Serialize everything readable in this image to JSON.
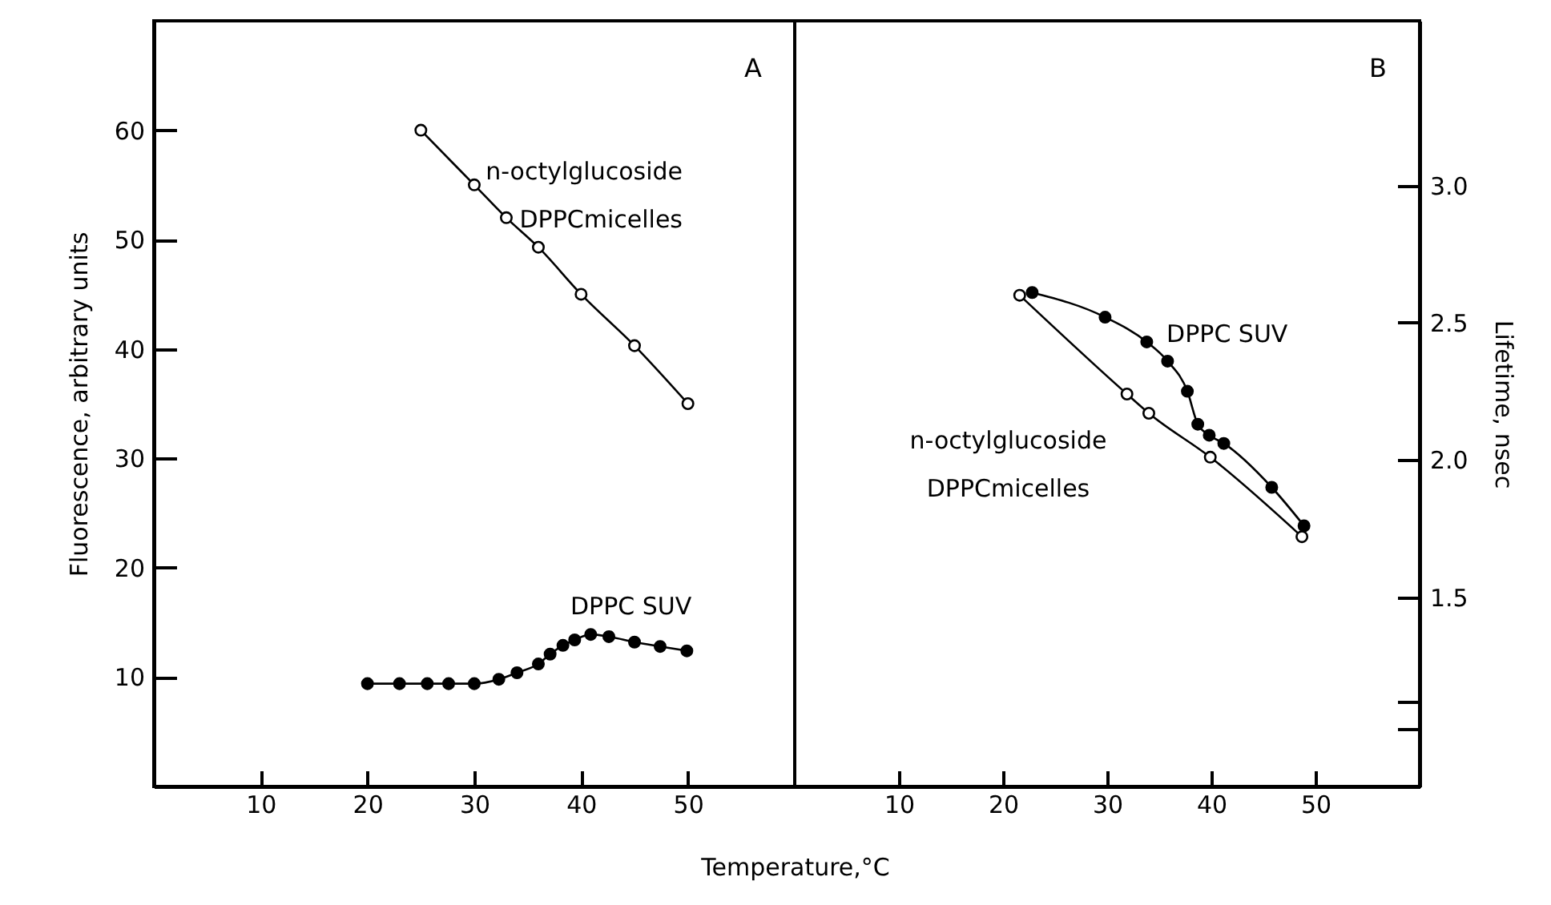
{
  "chart_data": [
    {
      "type": "line",
      "xlabel": "Temperature,°C",
      "ylabel": "Fluorescence, arbitrary units",
      "xlim": [
        0,
        60
      ],
      "xticks": [
        10,
        20,
        30,
        40,
        50
      ],
      "ylim": [
        0,
        70
      ],
      "yticks": [
        10,
        20,
        30,
        40,
        50,
        60
      ],
      "marker": "circle",
      "annotations": [
        "A"
      ],
      "series": [
        {
          "name": "n-octylglucoside\nDPPCmicelles",
          "color": "#000000",
          "x": [
            25,
            30,
            33,
            36,
            40,
            45,
            50
          ],
          "values": [
            60,
            55,
            52,
            49.3,
            45,
            40.3,
            35
          ]
        },
        {
          "name": "DPPC SUV",
          "color": "#000000",
          "x": [
            20,
            23,
            25.6,
            27.6,
            30,
            32.3,
            34,
            36,
            37.1,
            38.3,
            39.4,
            40.9,
            42.6,
            45,
            47.4,
            49.9
          ],
          "values": [
            9.4,
            9.4,
            9.4,
            9.4,
            9.4,
            9.8,
            10.4,
            11.2,
            12.1,
            12.9,
            13.4,
            13.9,
            13.7,
            13.2,
            12.8,
            12.4
          ]
        }
      ]
    },
    {
      "type": "line",
      "y2label": "Lifetime, nsec",
      "xlim": [
        0,
        60
      ],
      "xticks": [
        10,
        20,
        30,
        40,
        50
      ],
      "y2lim": [
        0.81,
        3.6
      ],
      "y2ticks": [
        {
          "value": 1.02,
          "label": null
        },
        {
          "value": 1.12,
          "label": null
        },
        1.5,
        {
          "value": 2,
          "label": "2.0"
        },
        2.5,
        {
          "value": 3,
          "label": "3.0"
        }
      ],
      "marker": "circle",
      "annotations": [
        "B"
      ],
      "series": [
        {
          "name": "n-octylglucoside\nDPPCmicelles",
          "color": "#000000",
          "axis": "y2",
          "x": [
            21.6,
            31.9,
            34,
            39.9,
            48.7
          ],
          "values": [
            2.6,
            2.24,
            2.17,
            2.01,
            1.72
          ]
        },
        {
          "name": "DPPC SUV",
          "color": "#000000",
          "axis": "y2",
          "x": [
            22.8,
            29.8,
            33.8,
            35.8,
            37.7,
            38.7,
            39.8,
            41.2,
            45.8,
            48.9
          ],
          "values": [
            2.61,
            2.52,
            2.43,
            2.36,
            2.25,
            2.13,
            2.09,
            2.06,
            1.9,
            1.76
          ]
        }
      ]
    }
  ]
}
